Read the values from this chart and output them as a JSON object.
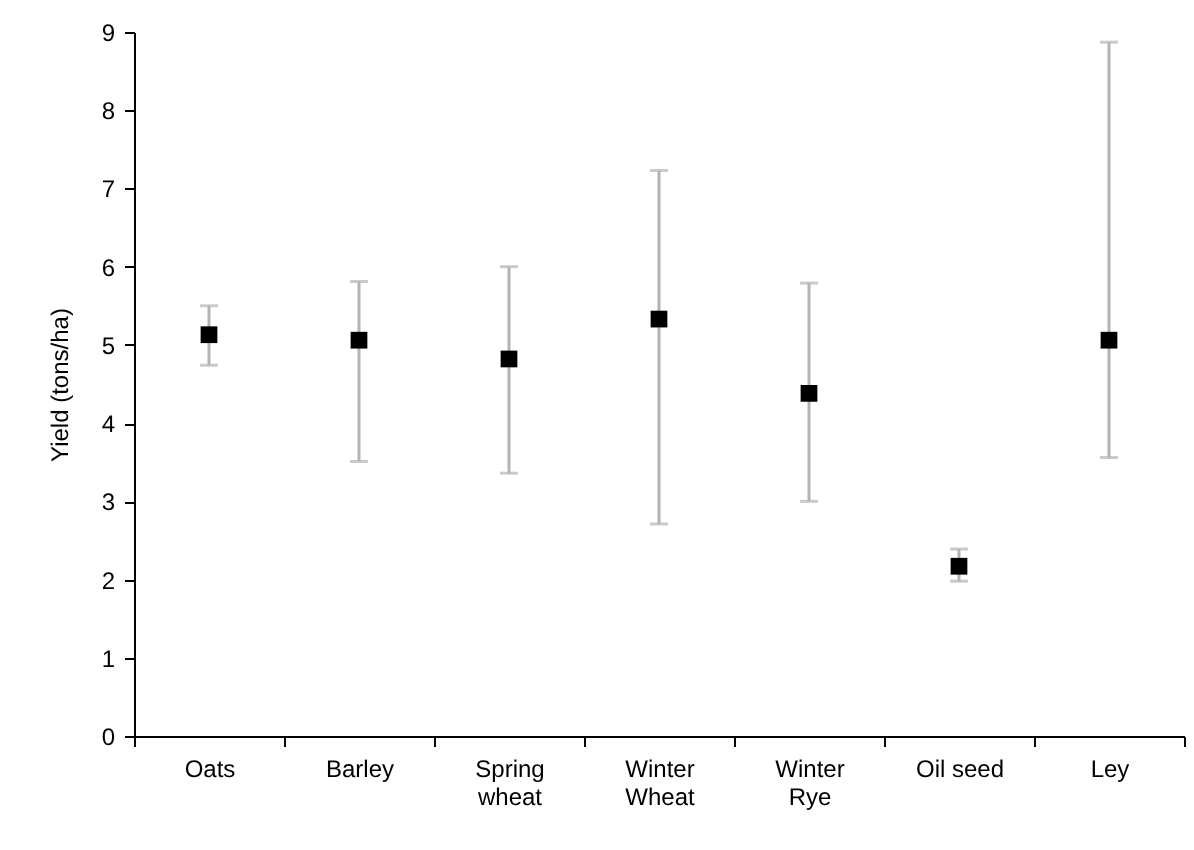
{
  "chart_data": {
    "type": "scatter",
    "ylabel": "Yield (tons/ha)",
    "categories": [
      "Oats",
      "Barley",
      "Spring wheat",
      "Winter Wheat",
      "Winter Rye",
      "Oil seed",
      "Ley"
    ],
    "values": [
      5.13,
      5.06,
      4.82,
      5.33,
      4.38,
      2.17,
      5.06
    ],
    "errors": [
      [
        4.74,
        5.5
      ],
      [
        3.51,
        5.81
      ],
      [
        3.36,
        6.0
      ],
      [
        2.71,
        7.23
      ],
      [
        3.0,
        5.79
      ],
      [
        1.98,
        2.39
      ],
      [
        3.56,
        8.87
      ]
    ],
    "color": "#000000",
    "marker": "square",
    "ylim": [
      0,
      9
    ],
    "yticks": [
      0,
      1,
      2,
      3,
      4,
      5,
      6,
      7,
      8,
      9
    ]
  }
}
